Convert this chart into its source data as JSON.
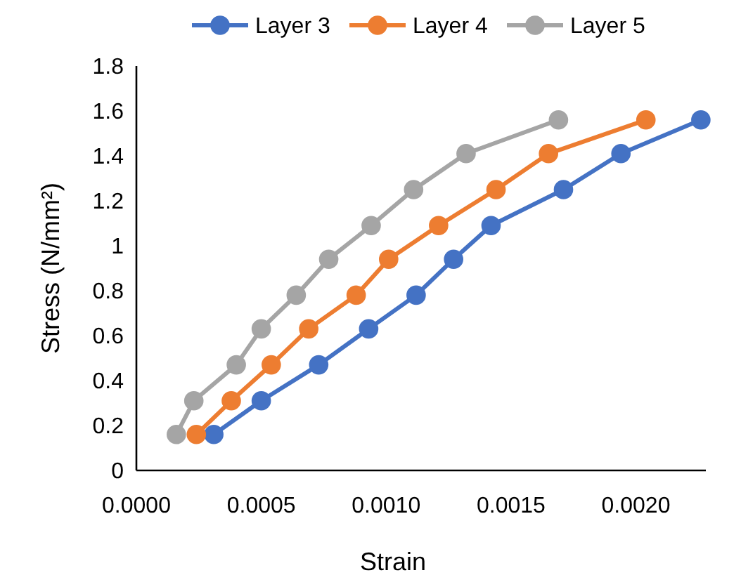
{
  "chart_data": {
    "type": "line",
    "xlabel": "Strain",
    "ylabel": "Stress (N/mm²)",
    "xlim": [
      0,
      0.00228
    ],
    "xticks": [
      {
        "value": 0,
        "label": "0.0000"
      },
      {
        "value": 0.0005,
        "label": "0.0005"
      },
      {
        "value": 0.001,
        "label": "0.0010"
      },
      {
        "value": 0.0015,
        "label": "0.0015"
      },
      {
        "value": 0.002,
        "label": "0.0020"
      }
    ],
    "ylim": [
      0,
      1.8
    ],
    "yticks": [
      0,
      0.2,
      0.4,
      0.6,
      0.8,
      1,
      1.2,
      1.4,
      1.6,
      1.8
    ],
    "grid": false,
    "legend": "top",
    "marker": "circle",
    "line_style": "solid",
    "series": [
      {
        "name": "Layer 3",
        "color": "#4472c4",
        "x": [
          0.00031,
          0.0005,
          0.00073,
          0.00093,
          0.00112,
          0.00127,
          0.00142,
          0.00171,
          0.00194,
          0.00226
        ],
        "values": [
          0.16,
          0.31,
          0.47,
          0.63,
          0.78,
          0.94,
          1.09,
          1.25,
          1.41,
          1.56
        ]
      },
      {
        "name": "Layer 4",
        "color": "#ed7d31",
        "x": [
          0.00024,
          0.00038,
          0.00054,
          0.00069,
          0.00088,
          0.00101,
          0.00121,
          0.00144,
          0.00165,
          0.00204
        ],
        "values": [
          0.16,
          0.31,
          0.47,
          0.63,
          0.78,
          0.94,
          1.09,
          1.25,
          1.41,
          1.56
        ]
      },
      {
        "name": "Layer 5",
        "color": "#a5a5a5",
        "x": [
          0.00016,
          0.00023,
          0.0004,
          0.0005,
          0.00064,
          0.00077,
          0.00094,
          0.00111,
          0.00132,
          0.00169
        ],
        "values": [
          0.16,
          0.31,
          0.47,
          0.63,
          0.78,
          0.94,
          1.09,
          1.25,
          1.41,
          1.56
        ]
      }
    ]
  }
}
